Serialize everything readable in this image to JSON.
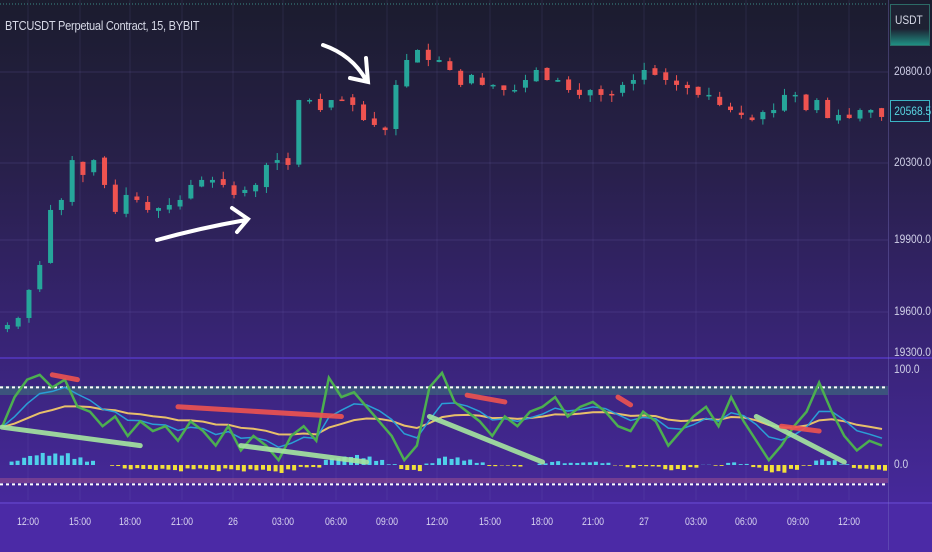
{
  "header": {
    "symbol_title": "BTCUSDT Perpetual Contract, 15, BYBIT"
  },
  "price_axis": {
    "currency": "USDT",
    "labels": [
      "20800.0",
      "20300.0",
      "19900.0",
      "19600.0",
      "19300.0"
    ],
    "current_price": "20568.5",
    "current_price_color": "#3bb4c4"
  },
  "oscillator_axis": {
    "labels": [
      "100.0",
      "0.0"
    ]
  },
  "time_axis": {
    "labels": [
      "12:00",
      "15:00",
      "18:00",
      "21:00",
      "26",
      "03:00",
      "06:00",
      "09:00",
      "12:00",
      "15:00",
      "18:00",
      "21:00",
      "27",
      "03:00",
      "06:00",
      "09:00",
      "12:00"
    ]
  },
  "colors": {
    "up": "#26a69a",
    "down": "#ef5350",
    "background_top": "#1b1c2e",
    "background_bottom": "#4a2aa6"
  },
  "chart_data": [
    {
      "type": "candlestick",
      "title": "BTCUSDT Perpetual Contract, 15, BYBIT",
      "ylabel": "USDT",
      "ylim": [
        19300,
        20950
      ],
      "closes": [
        19505,
        19556,
        19692,
        19796,
        20056,
        20108,
        20316,
        20238,
        20316,
        20186,
        20046,
        20134,
        20108,
        20056,
        20066,
        20082,
        20108,
        20186,
        20212,
        20212,
        20186,
        20134,
        20160,
        20186,
        20290,
        20316,
        20290,
        20646,
        20646,
        20591,
        20646,
        20646,
        20619,
        20536,
        20509,
        20481,
        20729,
        20866,
        20921,
        20866,
        20866,
        20811,
        20729,
        20784,
        20729,
        20729,
        20701,
        20701,
        20756,
        20811,
        20756,
        20756,
        20701,
        20674,
        20701,
        20674,
        20674,
        20729,
        20756,
        20811,
        20784,
        20756,
        20729,
        20712,
        20674,
        20674,
        20619,
        20591,
        20564,
        20536,
        20580,
        20591,
        20674,
        20674,
        20591,
        20646,
        20547,
        20564,
        20547,
        20591,
        20591,
        20553
      ],
      "annotations": [
        "arrow-up-right",
        "arrow-down-right"
      ]
    },
    {
      "type": "line",
      "ylim": [
        -25,
        100
      ],
      "levels": [
        80,
        -20
      ],
      "series": [
        {
          "color": "#4caf50",
          "values": [
            39,
            70,
            88,
            93,
            80,
            88,
            60,
            55,
            40,
            50,
            30,
            45,
            35,
            40,
            25,
            45,
            35,
            20,
            40,
            15,
            30,
            20,
            5,
            30,
            40,
            25,
            90,
            70,
            75,
            60,
            45,
            30,
            5,
            20,
            80,
            95,
            65,
            55,
            45,
            30,
            50,
            40,
            55,
            60,
            70,
            50,
            60,
            65,
            55,
            40,
            35,
            55,
            45,
            20,
            35,
            50,
            60,
            40,
            70,
            45,
            25,
            5,
            20,
            40,
            55,
            85,
            55,
            30,
            15,
            25,
            20
          ]
        }
      ],
      "divergences": [
        {
          "from": [
            4,
            93
          ],
          "to": [
            6,
            88
          ],
          "color": "#ef5350"
        },
        {
          "from": [
            14,
            60
          ],
          "to": [
            27,
            50
          ],
          "color": "#ef5350"
        },
        {
          "from": [
            0,
            39
          ],
          "to": [
            11,
            20
          ],
          "color": "#a5e6a0"
        },
        {
          "from": [
            19,
            20
          ],
          "to": [
            29,
            3
          ],
          "color": "#a5e6a0"
        },
        {
          "from": [
            34,
            50
          ],
          "to": [
            43,
            3
          ],
          "color": "#a5e6a0"
        },
        {
          "from": [
            37,
            72
          ],
          "to": [
            40,
            65
          ],
          "color": "#ef5350"
        },
        {
          "from": [
            49,
            70
          ],
          "to": [
            50,
            62
          ],
          "color": "#ef5350"
        },
        {
          "from": [
            60,
            50
          ],
          "to": [
            67,
            3
          ],
          "color": "#a5e6a0"
        },
        {
          "from": [
            62,
            40
          ],
          "to": [
            65,
            35
          ],
          "color": "#ef5350"
        }
      ]
    }
  ]
}
